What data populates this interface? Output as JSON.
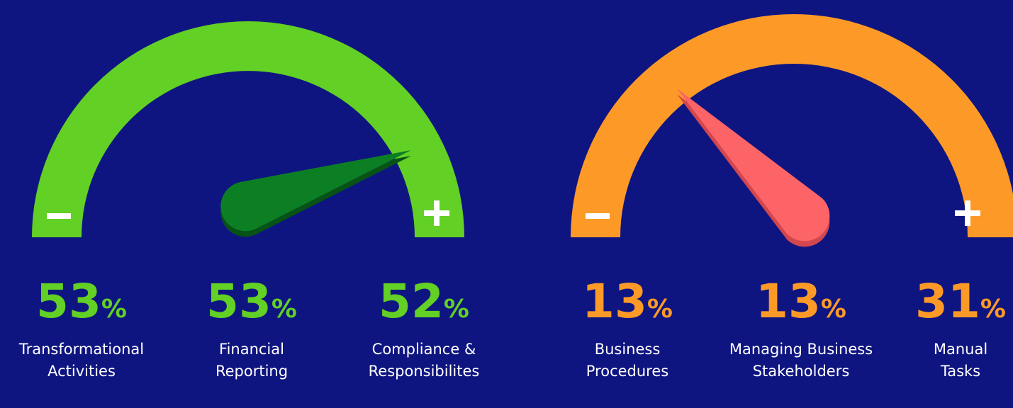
{
  "gauges": [
    {
      "color": "#62d024",
      "stats": [
        {
          "value": 53,
          "unit": "%",
          "label_lines": [
            "Transformational",
            "Activities"
          ]
        },
        {
          "value": 53,
          "unit": "%",
          "label_lines": [
            "Financial",
            "Reporting"
          ]
        },
        {
          "value": 52,
          "unit": "%",
          "label_lines": [
            "Compliance &",
            "Responsibilites"
          ]
        }
      ]
    },
    {
      "color": "#fd9a27",
      "stats": [
        {
          "value": 13,
          "unit": "%",
          "label_lines": [
            "Business",
            "Procedures"
          ]
        },
        {
          "value": 13,
          "unit": "%",
          "label_lines": [
            "Managing Business",
            "Stakeholders"
          ]
        },
        {
          "value": 31,
          "unit": "%",
          "label_lines": [
            "Manual",
            "Tasks"
          ]
        }
      ]
    }
  ]
}
